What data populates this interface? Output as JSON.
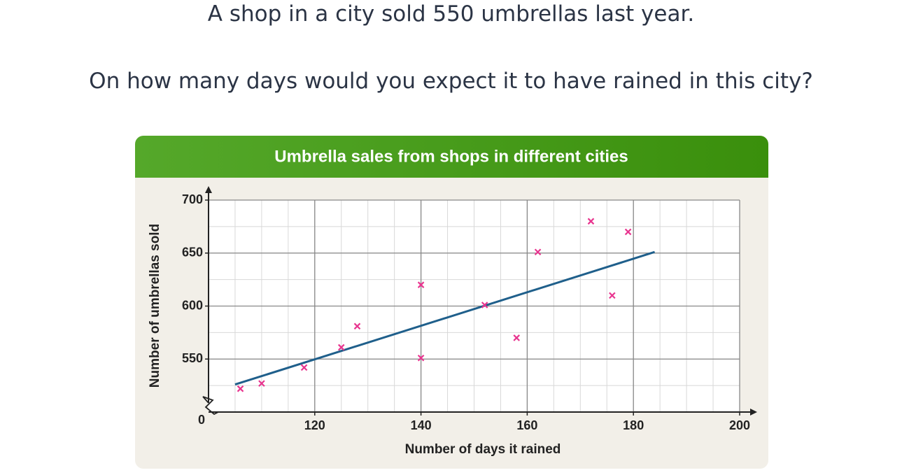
{
  "question": {
    "line1": "A shop in a city sold 550 umbrellas last year.",
    "line2": "On how many days would you expect it to have rained in this city?"
  },
  "chart_data": {
    "type": "scatter",
    "title": "Umbrella sales from shops in different cities",
    "xlabel": "Number of days it rained",
    "ylabel": "Number of umbrellas sold",
    "origin_label": "0",
    "x": [
      106,
      110,
      118,
      125,
      128,
      140,
      140,
      152,
      158,
      162,
      172,
      176,
      179
    ],
    "values": [
      522,
      527,
      542,
      561,
      581,
      551,
      620,
      601,
      570,
      651,
      680,
      610,
      670
    ],
    "color": "#e8358f",
    "trendline": {
      "x": [
        105,
        184
      ],
      "y": [
        526,
        651
      ],
      "color": "#1f5f8b"
    },
    "xlim": [
      100,
      200
    ],
    "ylim": [
      500,
      700
    ],
    "xticks": [
      120,
      140,
      160,
      180,
      200
    ],
    "yticks": [
      550,
      600,
      650,
      700
    ],
    "minor_step": {
      "x": 5,
      "y": 25
    },
    "grid": true
  }
}
